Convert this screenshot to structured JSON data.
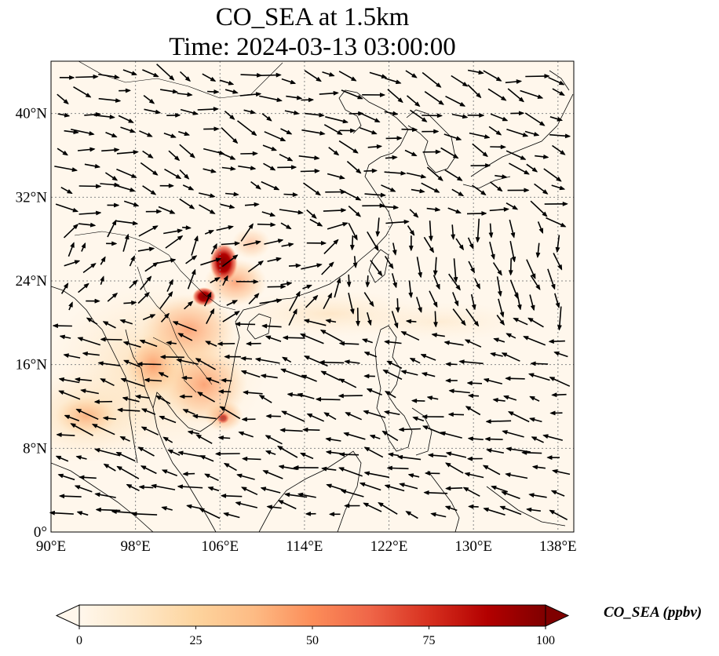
{
  "title_line1": "CO_SEA at 1.5km",
  "title_line2": "Time: 2024-03-13 03:00:00",
  "map": {
    "lon_range": [
      90,
      139.5
    ],
    "lat_range": [
      0,
      45
    ],
    "lon_ticks": [
      {
        "value": 90,
        "label": "90°E"
      },
      {
        "value": 98,
        "label": "98°E"
      },
      {
        "value": 106,
        "label": "106°E"
      },
      {
        "value": 114,
        "label": "114°E"
      },
      {
        "value": 122,
        "label": "122°E"
      },
      {
        "value": 130,
        "label": "130°E"
      },
      {
        "value": 138,
        "label": "138°E"
      }
    ],
    "lat_ticks": [
      {
        "value": 0,
        "label": "0°"
      },
      {
        "value": 8,
        "label": "8°N"
      },
      {
        "value": 16,
        "label": "16°N"
      },
      {
        "value": 24,
        "label": "24°N"
      },
      {
        "value": 32,
        "label": "32°N"
      },
      {
        "value": 40,
        "label": "40°N"
      }
    ],
    "gridlines": true,
    "background_color": "#fff7ec",
    "coastline_color": "#000000"
  },
  "colorbar": {
    "title": "CO_SEA (ppbv)",
    "min": 0,
    "max": 100,
    "ticks": [
      {
        "value": 0,
        "label": "0"
      },
      {
        "value": 25,
        "label": "25"
      },
      {
        "value": 50,
        "label": "50"
      },
      {
        "value": 75,
        "label": "75"
      },
      {
        "value": 100,
        "label": "100"
      }
    ],
    "colormap": [
      "#fff7ec",
      "#fee8c8",
      "#fdd49e",
      "#fdbb84",
      "#fc8d59",
      "#ef6548",
      "#d7301f",
      "#b30000",
      "#7f0000"
    ],
    "extend": "both"
  }
}
